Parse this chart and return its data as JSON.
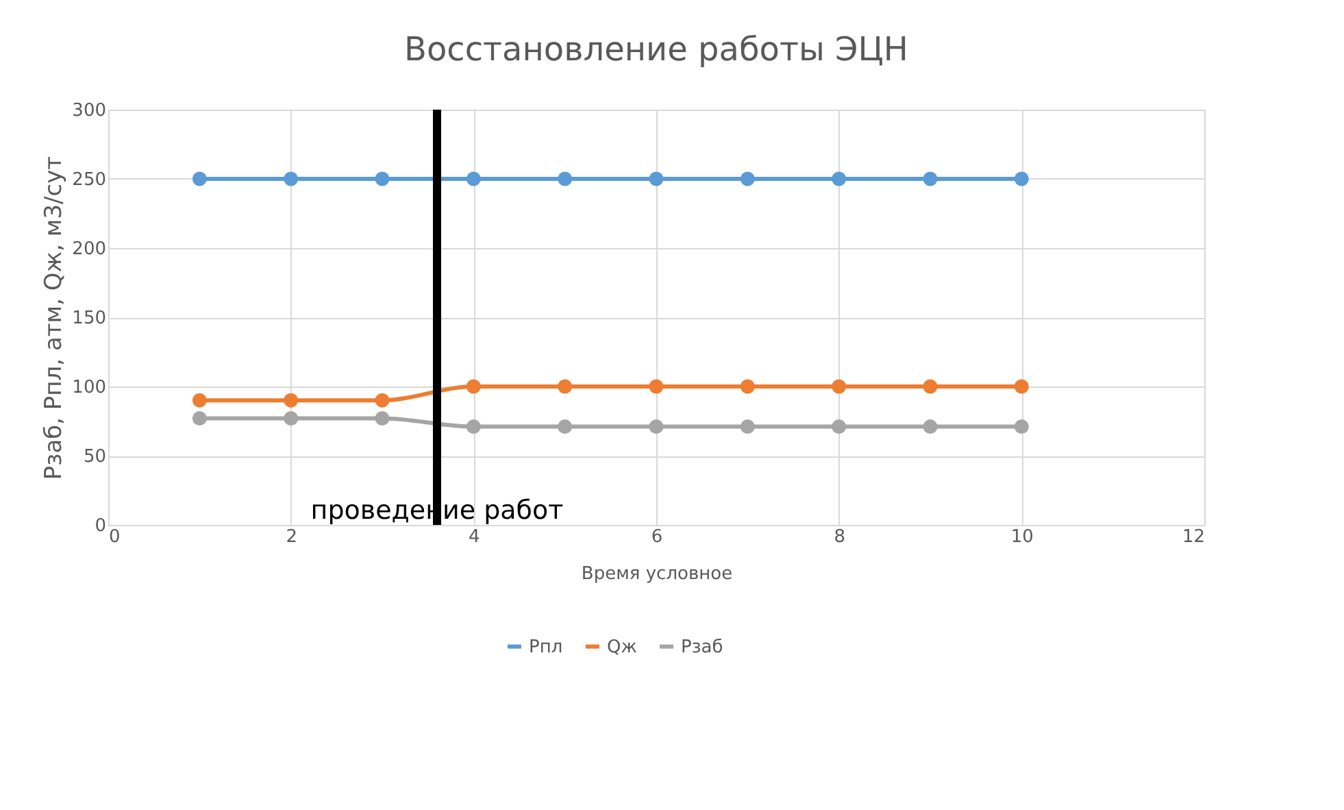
{
  "chart_data": {
    "type": "line",
    "title": "Восстановление работы ЭЦН",
    "xlabel": "Время условное",
    "ylabel": "Рзаб, Рпл, атм, Qж, м3/сут",
    "x": [
      1,
      2,
      3,
      4,
      5,
      6,
      7,
      8,
      9,
      10
    ],
    "series": [
      {
        "name": "Рпл",
        "color": "#5b9bd5",
        "values": [
          250,
          250,
          250,
          250,
          250,
          250,
          250,
          250,
          250,
          250
        ]
      },
      {
        "name": "Qж",
        "color": "#ed7d31",
        "values": [
          90,
          90,
          90,
          100,
          100,
          100,
          100,
          100,
          100,
          100
        ]
      },
      {
        "name": "Рзаб",
        "color": "#a5a5a5",
        "values": [
          77,
          77,
          77,
          71,
          71,
          71,
          71,
          71,
          71,
          71
        ]
      }
    ],
    "xlim": [
      0,
      12
    ],
    "xticks": [
      0,
      2,
      4,
      6,
      8,
      10,
      12
    ],
    "ylim": [
      0,
      300
    ],
    "yticks": [
      0,
      50,
      100,
      150,
      200,
      250,
      300
    ],
    "ref_lines": [
      {
        "axis": "x",
        "value": 3.6,
        "label": "проведение работ",
        "color": "#000000"
      }
    ],
    "grid": true,
    "legend": "bottom",
    "marker": "circle",
    "line_style": "solid"
  }
}
